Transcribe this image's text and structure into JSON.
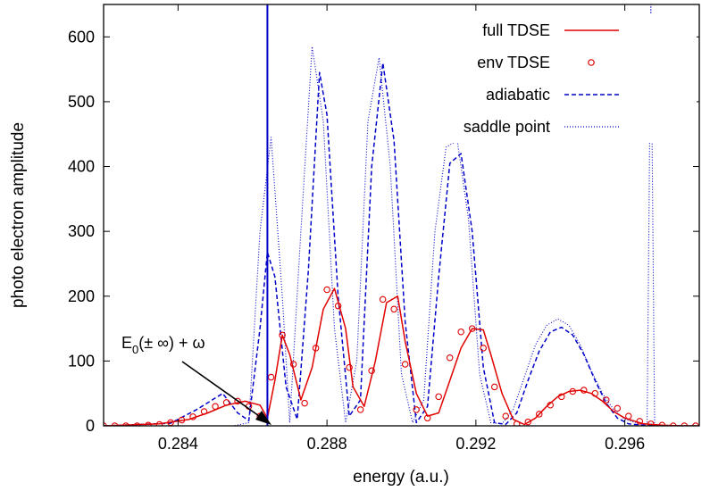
{
  "chart_data": {
    "type": "line",
    "title": "",
    "xlabel": "energy (a.u.)",
    "ylabel": "photo electron amplitude",
    "xlim": [
      0.282,
      0.298
    ],
    "ylim": [
      0,
      650
    ],
    "x_ticks": [
      0.284,
      0.288,
      0.292,
      0.296
    ],
    "x_tick_labels": [
      "0.284",
      "0.288",
      "0.292",
      "0.296"
    ],
    "y_ticks": [
      0,
      100,
      200,
      300,
      400,
      500,
      600
    ],
    "y_tick_labels": [
      "0",
      "100",
      "200",
      "300",
      "400",
      "500",
      "600"
    ],
    "grid": false,
    "legend_position": "top-right",
    "colors": {
      "red": "#e00000",
      "blue": "#0000c8"
    },
    "annotation": {
      "text_parts": [
        "E",
        "0",
        "(± ∞) + ω"
      ],
      "x": 0.2863,
      "y": 0
    },
    "vertical_line_x": 0.2864,
    "series": [
      {
        "name": "full TDSE",
        "style": "solid",
        "color": "#e00000",
        "x": [
          0.282,
          0.2835,
          0.2843,
          0.2848,
          0.2853,
          0.2858,
          0.2862,
          0.2864,
          0.2866,
          0.2868,
          0.287,
          0.2873,
          0.2876,
          0.2879,
          0.2882,
          0.2885,
          0.2887,
          0.289,
          0.2893,
          0.2896,
          0.2899,
          0.2901,
          0.2904,
          0.2907,
          0.291,
          0.2913,
          0.2916,
          0.2919,
          0.2922,
          0.2924,
          0.2927,
          0.293,
          0.2933,
          0.2936,
          0.2939,
          0.2942,
          0.2945,
          0.2948,
          0.2951,
          0.2954,
          0.2957,
          0.296,
          0.2965,
          0.297,
          0.2975,
          0.298
        ],
        "values": [
          0,
          3,
          10,
          20,
          32,
          38,
          32,
          12,
          70,
          140,
          110,
          40,
          90,
          180,
          212,
          150,
          60,
          30,
          100,
          190,
          200,
          130,
          50,
          15,
          20,
          70,
          120,
          150,
          148,
          110,
          50,
          10,
          2,
          12,
          30,
          45,
          53,
          55,
          50,
          38,
          22,
          12,
          3,
          1,
          0,
          0
        ]
      },
      {
        "name": "env TDSE",
        "style": "circle",
        "color": "#e00000",
        "x": [
          0.282,
          0.2823,
          0.2826,
          0.2829,
          0.2832,
          0.2835,
          0.2838,
          0.2841,
          0.2844,
          0.2847,
          0.285,
          0.2853,
          0.2856,
          0.2859,
          0.2862,
          0.2865,
          0.2868,
          0.2871,
          0.2874,
          0.2877,
          0.288,
          0.2883,
          0.2886,
          0.2889,
          0.2892,
          0.2895,
          0.2898,
          0.2901,
          0.2904,
          0.2907,
          0.291,
          0.2913,
          0.2916,
          0.2919,
          0.2922,
          0.2925,
          0.2928,
          0.2931,
          0.2934,
          0.2937,
          0.294,
          0.2943,
          0.2946,
          0.2949,
          0.2952,
          0.2955,
          0.2958,
          0.2961,
          0.2964,
          0.2967,
          0.297,
          0.2973,
          0.2976,
          0.2979
        ],
        "values": [
          0,
          0,
          0,
          0,
          1,
          2,
          5,
          9,
          14,
          22,
          30,
          36,
          38,
          30,
          15,
          75,
          140,
          95,
          35,
          120,
          210,
          185,
          90,
          25,
          85,
          195,
          180,
          95,
          25,
          12,
          45,
          105,
          145,
          150,
          120,
          60,
          15,
          3,
          6,
          18,
          32,
          45,
          53,
          55,
          50,
          40,
          27,
          15,
          7,
          3,
          1,
          0,
          0,
          0
        ]
      },
      {
        "name": "adiabatic",
        "style": "dashed",
        "color": "#0000c8",
        "x": [
          0.282,
          0.2838,
          0.2845,
          0.2852,
          0.2856,
          0.2859,
          0.2862,
          0.2864,
          0.2866,
          0.2869,
          0.2872,
          0.2875,
          0.2878,
          0.288,
          0.2883,
          0.2886,
          0.2889,
          0.2892,
          0.2895,
          0.2898,
          0.2901,
          0.2904,
          0.2907,
          0.291,
          0.2913,
          0.2916,
          0.2919,
          0.2922,
          0.2925,
          0.2928,
          0.2931,
          0.2934,
          0.2937,
          0.294,
          0.2943,
          0.2946,
          0.2949,
          0.2952,
          0.2955,
          0.2958,
          0.2961,
          0.2965,
          0.297,
          0.2975,
          0.298
        ],
        "values": [
          0,
          4,
          25,
          50,
          20,
          8,
          150,
          268,
          230,
          60,
          10,
          240,
          545,
          480,
          200,
          15,
          40,
          400,
          560,
          440,
          160,
          5,
          30,
          230,
          405,
          420,
          300,
          90,
          5,
          2,
          20,
          70,
          115,
          145,
          152,
          140,
          110,
          70,
          35,
          12,
          3,
          1,
          0,
          0,
          0
        ]
      },
      {
        "name": "saddle point",
        "style": "dotted",
        "color": "#0000c8",
        "x": [
          0.282,
          0.2855,
          0.2859,
          0.2862,
          0.2865,
          0.2868,
          0.287,
          0.2873,
          0.2876,
          0.2879,
          0.2882,
          0.2885,
          0.2888,
          0.2891,
          0.2894,
          0.2897,
          0.29,
          0.2903,
          0.2906,
          0.2909,
          0.2912,
          0.2915,
          0.2918,
          0.2921,
          0.2924,
          0.2927,
          0.293,
          0.2933,
          0.2936,
          0.2939,
          0.2942,
          0.2945,
          0.2948,
          0.2951,
          0.2954,
          0.2957,
          0.296,
          0.2963,
          0.2966,
          0.2967,
          0.2968,
          0.297,
          0.298
        ],
        "values": [
          0,
          0,
          5,
          300,
          445,
          200,
          5,
          300,
          585,
          470,
          150,
          5,
          100,
          470,
          568,
          400,
          80,
          5,
          40,
          300,
          430,
          440,
          320,
          80,
          5,
          3,
          25,
          75,
          125,
          155,
          165,
          155,
          125,
          85,
          50,
          25,
          10,
          5,
          3,
          650,
          0,
          0,
          0
        ]
      }
    ]
  }
}
